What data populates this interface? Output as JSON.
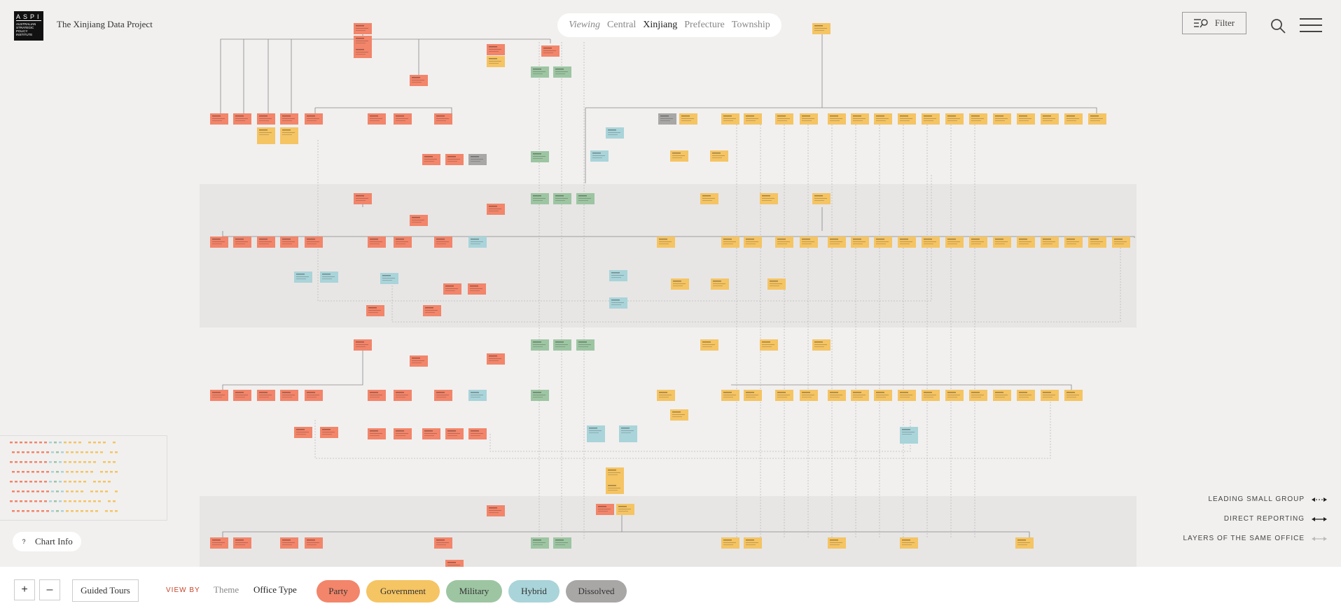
{
  "header": {
    "logo_big": "ASPI",
    "logo_small": "AUSTRALIAN STRATEGIC POLICY INSTITUTE",
    "site_title": "The Xinjiang Data Project"
  },
  "viewing": {
    "label": "Viewing",
    "levels": [
      "Central",
      "Xinjiang",
      "Prefecture",
      "Township"
    ],
    "active": "Xinjiang"
  },
  "filter": {
    "label": "Filter"
  },
  "chart_info": {
    "label": "Chart Info",
    "icon": "?"
  },
  "legend": [
    {
      "label": "LEADING SMALL GROUP",
      "color": "#222"
    },
    {
      "label": "DIRECT REPORTING",
      "color": "#222"
    },
    {
      "label": "LAYERS OF THE SAME OFFICE",
      "color": "#bbb"
    }
  ],
  "bottom": {
    "zoom_in": "+",
    "zoom_out": "–",
    "guided_tours": "Guided Tours",
    "view_by_label": "VIEW BY",
    "view_by_options": [
      "Theme",
      "Office Type"
    ],
    "view_by_active": "Office Type",
    "types": [
      {
        "label": "Party",
        "color": "#f2856a"
      },
      {
        "label": "Government",
        "color": "#f5c463"
      },
      {
        "label": "Military",
        "color": "#9dc5a2"
      },
      {
        "label": "Hybrid",
        "color": "#a9d4d9"
      },
      {
        "label": "Dissolved",
        "color": "#a9a6a6"
      }
    ]
  }
}
